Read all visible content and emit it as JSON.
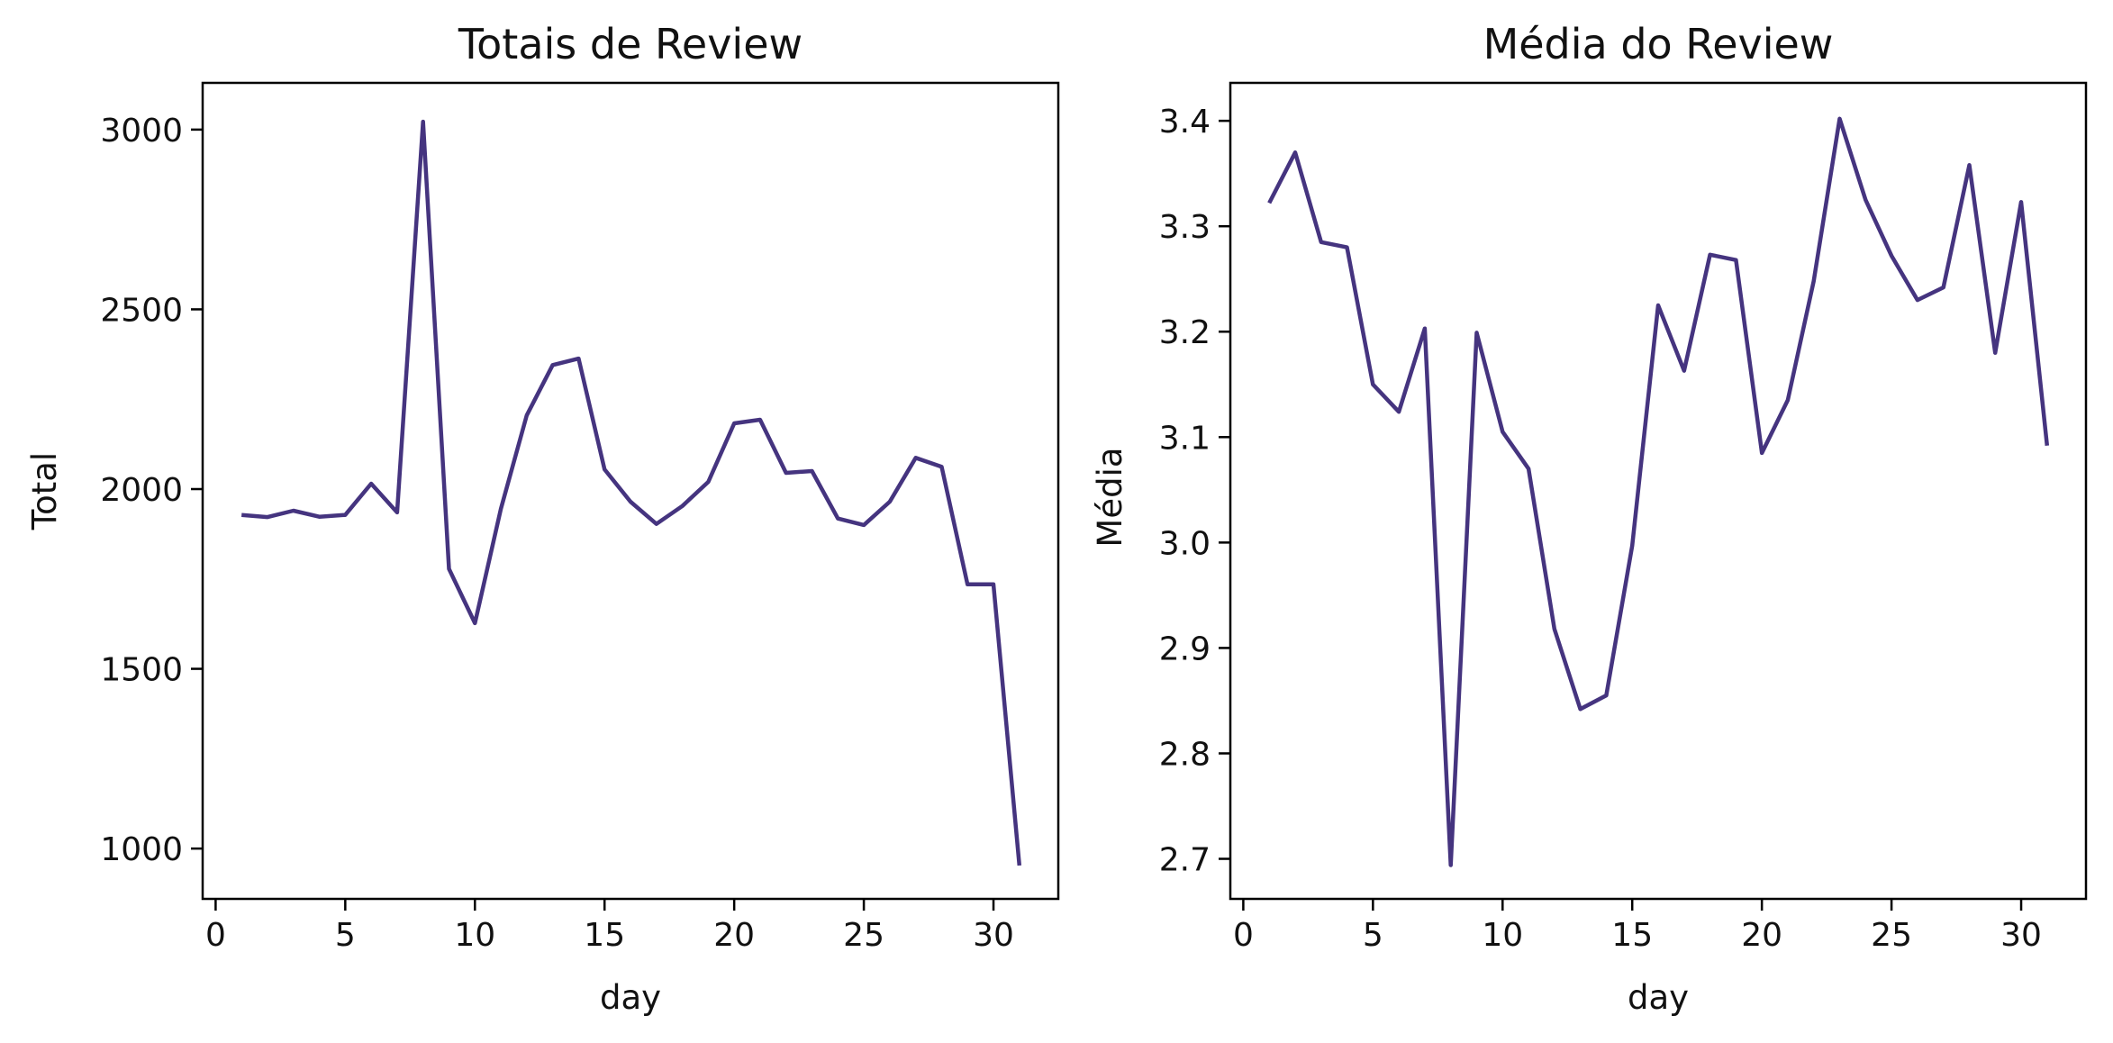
{
  "chart_data": [
    {
      "type": "line",
      "title": "Totais de Review",
      "xlabel": "day",
      "ylabel": "Total",
      "color": "#45347f",
      "xlim": [
        -0.5,
        32.5
      ],
      "ylim": [
        860,
        3130
      ],
      "xticks": [
        0,
        5,
        10,
        15,
        20,
        25,
        30
      ],
      "yticks": [
        1000,
        1500,
        2000,
        2500,
        3000
      ],
      "ytick_labels": [
        "1000",
        "1500",
        "2000",
        "2500",
        "3000"
      ],
      "x": [
        1,
        2,
        3,
        4,
        5,
        6,
        7,
        8,
        9,
        10,
        11,
        12,
        13,
        14,
        15,
        16,
        17,
        18,
        19,
        20,
        21,
        22,
        23,
        24,
        25,
        26,
        27,
        28,
        29,
        30,
        31
      ],
      "y": [
        1928,
        1922,
        1940,
        1923,
        1928,
        2015,
        1935,
        3022,
        1778,
        1627,
        1945,
        2205,
        2345,
        2363,
        2055,
        1965,
        1903,
        1953,
        2020,
        2183,
        2193,
        2045,
        2050,
        1918,
        1900,
        1965,
        2087,
        2062,
        1735,
        1735,
        953
      ]
    },
    {
      "type": "line",
      "title": "Média do Review",
      "xlabel": "day",
      "ylabel": "Média",
      "color": "#45347f",
      "xlim": [
        -0.5,
        32.5
      ],
      "ylim": [
        2.662,
        3.436
      ],
      "xticks": [
        0,
        5,
        10,
        15,
        20,
        25,
        30
      ],
      "yticks": [
        2.7,
        2.8,
        2.9,
        3.0,
        3.1,
        3.2,
        3.3,
        3.4
      ],
      "ytick_labels": [
        "2.7",
        "2.8",
        "2.9",
        "3.0",
        "3.1",
        "3.2",
        "3.3",
        "3.4"
      ],
      "x": [
        1,
        2,
        3,
        4,
        5,
        6,
        7,
        8,
        9,
        10,
        11,
        12,
        13,
        14,
        15,
        16,
        17,
        18,
        19,
        20,
        21,
        22,
        23,
        24,
        25,
        26,
        27,
        28,
        29,
        30,
        31
      ],
      "y": [
        3.322,
        3.37,
        3.285,
        3.28,
        3.15,
        3.124,
        3.203,
        2.694,
        3.199,
        3.105,
        3.07,
        2.918,
        2.842,
        2.855,
        2.997,
        3.225,
        3.163,
        3.273,
        3.268,
        3.085,
        3.135,
        3.248,
        3.402,
        3.325,
        3.272,
        3.23,
        3.242,
        3.358,
        3.18,
        3.323,
        3.092
      ]
    }
  ]
}
